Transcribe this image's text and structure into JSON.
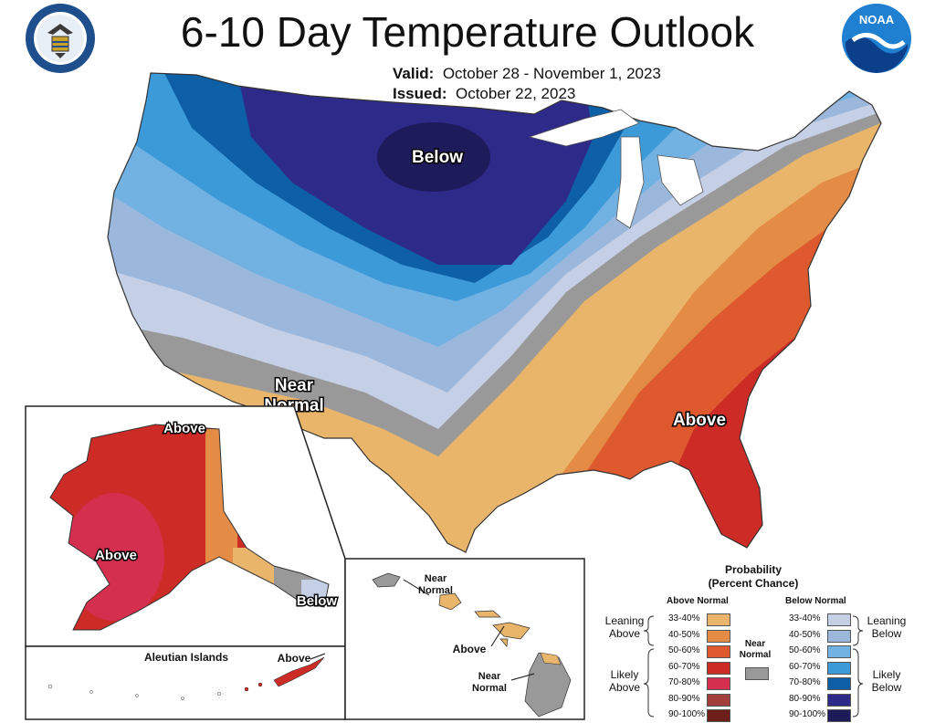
{
  "header": {
    "title": "6-10 Day Temperature Outlook",
    "valid_label": "Valid:",
    "valid_value": "October 28 - November 1, 2023",
    "issued_label": "Issued:",
    "issued_value": "October 22, 2023",
    "noaa_logo_text": "NOAA"
  },
  "map_labels": {
    "conus_below": "Below",
    "conus_near_1": "Near",
    "conus_near_2": "Normal",
    "conus_above": "Above",
    "ak_above_north": "Above",
    "ak_above_west": "Above",
    "ak_below": "Below",
    "aleutian_title": "Aleutian Islands",
    "aleutian_above": "Above",
    "hi_near_top_1": "Near",
    "hi_near_top_2": "Normal",
    "hi_above": "Above",
    "hi_near_bottom_1": "Near",
    "hi_near_bottom_2": "Normal"
  },
  "legend": {
    "title_line1": "Probability",
    "title_line2": "(Percent Chance)",
    "above_header": "Above Normal",
    "below_header": "Below Normal",
    "near_label_1": "Near",
    "near_label_2": "Normal",
    "leaning_above_1": "Leaning",
    "leaning_above_2": "Above",
    "likely_above_1": "Likely",
    "likely_above_2": "Above",
    "leaning_below_1": "Leaning",
    "leaning_below_2": "Below",
    "likely_below_1": "Likely",
    "likely_below_2": "Below",
    "ranges": [
      "33-40%",
      "40-50%",
      "50-60%",
      "60-70%",
      "70-80%",
      "80-90%",
      "90-100%"
    ],
    "above_colors": [
      "#e8b56a",
      "#e48c45",
      "#de5a2e",
      "#cc2b26",
      "#d42f4f",
      "#a3403e",
      "#6e1e18"
    ],
    "below_colors": [
      "#c5cfe6",
      "#9bb8dc",
      "#72b2e3",
      "#3d9ad9",
      "#0d5fa6",
      "#2e2a8a",
      "#1e1b5a"
    ],
    "near_color": "#999999"
  }
}
